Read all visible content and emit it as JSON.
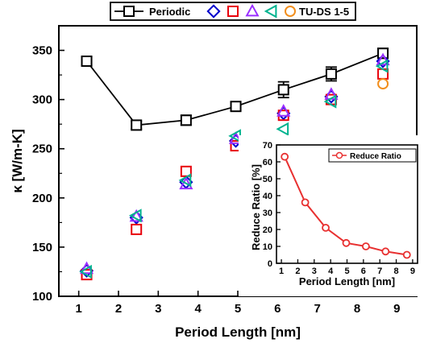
{
  "chart_data": [
    {
      "type": "scatter",
      "xlabel": "Period Length [nm]",
      "ylabel": "κ [W/m-K]",
      "xlim": [
        0.5,
        9.5
      ],
      "ylim": [
        100,
        375
      ],
      "x_ticks": [
        "1",
        "2",
        "3",
        "4",
        "5",
        "6",
        "7",
        "8",
        "9"
      ],
      "y_ticks": [
        "100",
        "150",
        "200",
        "250",
        "300",
        "350"
      ],
      "legend_position": "top",
      "legend": {
        "periodic_label": "Periodic",
        "tuds_label": "TU-DS 1-5"
      },
      "series": [
        {
          "name": "Periodic",
          "marker": "square-errorbar",
          "color": "#000000",
          "x": [
            1.2,
            2.45,
            3.7,
            4.95,
            6.15,
            7.35,
            8.65
          ],
          "y": [
            339,
            274,
            279,
            293,
            310,
            326,
            347
          ],
          "err": [
            4,
            4,
            5,
            4,
            8,
            7,
            5
          ]
        },
        {
          "marker": "diamond",
          "color": "#0000cc",
          "x": [
            1.2,
            2.45,
            3.7,
            4.95,
            6.15,
            7.35,
            8.65
          ],
          "y": [
            126,
            180,
            216,
            258,
            286,
            303,
            339
          ]
        },
        {
          "marker": "square",
          "color": "#e8000b",
          "x": [
            1.2,
            2.45,
            3.7,
            4.95,
            6.15,
            7.35,
            8.65
          ],
          "y": [
            122,
            168,
            227,
            253,
            284,
            300,
            326
          ]
        },
        {
          "marker": "triangle-up",
          "color": "#9b30ff",
          "x": [
            1.2,
            2.45,
            3.7,
            4.95,
            6.15,
            7.35,
            8.65
          ],
          "y": [
            128,
            181,
            214,
            260,
            288,
            305,
            340
          ]
        },
        {
          "marker": "triangle-left",
          "color": "#00b38f",
          "x": [
            1.2,
            2.45,
            3.7,
            4.95,
            6.15,
            7.35,
            8.65
          ],
          "y": [
            125,
            182,
            218,
            263,
            270,
            298,
            334
          ]
        },
        {
          "marker": "circle",
          "color": "#f28e1c",
          "x": [
            8.65
          ],
          "y": [
            316
          ]
        }
      ]
    },
    {
      "type": "line",
      "inset": true,
      "xlabel": "Period Length [nm]",
      "ylabel": "Reduce Ratio [%]",
      "xlim": [
        0.7,
        9.3
      ],
      "ylim": [
        0,
        70
      ],
      "x_ticks": [
        "1",
        "2",
        "3",
        "4",
        "5",
        "6",
        "7",
        "8",
        "9"
      ],
      "y_ticks": [
        "0",
        "10",
        "20",
        "30",
        "40",
        "50",
        "60",
        "70"
      ],
      "legend_position": "top-right",
      "series": [
        {
          "name": "Reduce Ratio",
          "color": "#e83030",
          "x": [
            1.2,
            2.45,
            3.7,
            4.95,
            6.15,
            7.35,
            8.65
          ],
          "y": [
            63,
            36,
            21,
            12,
            10,
            7,
            5
          ]
        }
      ]
    }
  ]
}
